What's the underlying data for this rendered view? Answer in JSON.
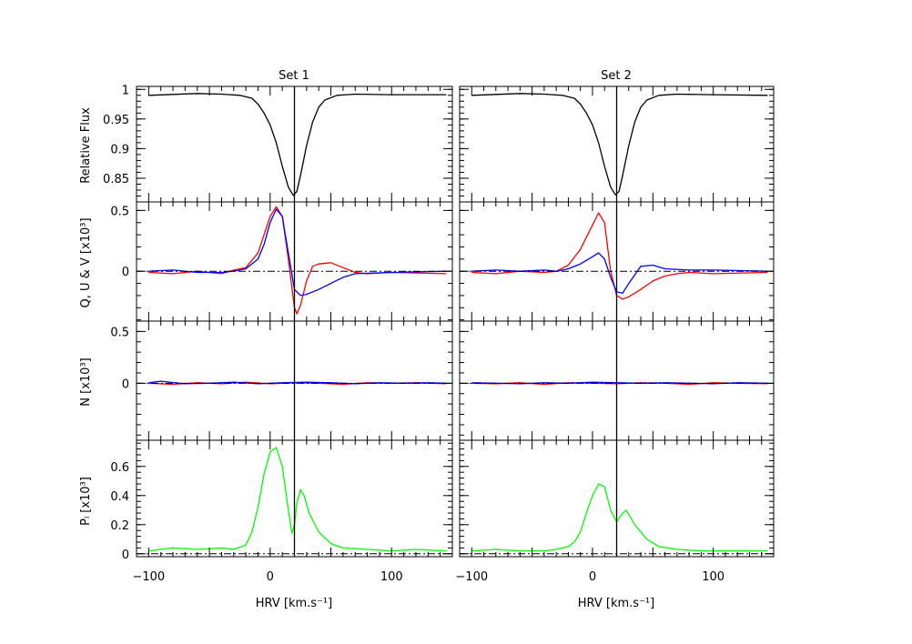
{
  "figure": {
    "columns": [
      {
        "title": "Set 1",
        "xlabel": "HRV [km.s⁻¹]"
      },
      {
        "title": "Set 2",
        "xlabel": "HRV [km.s⁻¹]"
      }
    ],
    "row_labels": [
      "Relative Flux",
      "Q, U & V [x10³]",
      "N [x10³]",
      "Pₗ [x10³]"
    ],
    "colors": {
      "black": "#000000",
      "red": "#ff0000",
      "blue": "#0000ff",
      "green": "#00ff00"
    }
  },
  "chart_data": {
    "type": "line",
    "xlim": [
      -110,
      150
    ],
    "x_ticks": [
      -100,
      0,
      100
    ],
    "reference_velocity": 20,
    "panels": [
      {
        "row": 0,
        "ylim": [
          0.81,
          1.005
        ],
        "ticks": [
          {
            "v": 0.85,
            "label": "0.85"
          },
          {
            "v": 0.9,
            "label": "0.9"
          },
          {
            "v": 0.95,
            "label": "0.95"
          },
          {
            "v": 1.0,
            "label": "1"
          }
        ],
        "zero_line": false
      },
      {
        "row": 1,
        "ylim": [
          -0.41,
          0.57
        ],
        "ticks": [
          {
            "v": 0,
            "label": "0"
          },
          {
            "v": 0.5,
            "label": "0.5"
          }
        ],
        "zero_line": true
      },
      {
        "row": 2,
        "ylim": [
          -0.55,
          0.6
        ],
        "ticks": [
          {
            "v": 0,
            "label": "0"
          },
          {
            "v": 0.5,
            "label": "0.5"
          }
        ],
        "zero_line": true
      },
      {
        "row": 3,
        "ylim": [
          -0.02,
          0.78
        ],
        "ticks": [
          {
            "v": 0,
            "label": "0"
          },
          {
            "v": 0.2,
            "label": "0.2"
          },
          {
            "v": 0.4,
            "label": "0.4"
          },
          {
            "v": 0.6,
            "label": "0.6"
          }
        ],
        "zero_line": true
      }
    ],
    "series": [
      {
        "col": 0,
        "row": 0,
        "color": "#000000",
        "x": [
          -100,
          -60,
          -40,
          -25,
          -15,
          -10,
          -5,
          0,
          5,
          10,
          15,
          19,
          22,
          25,
          30,
          35,
          40,
          45,
          55,
          70,
          100,
          145
        ],
        "y": [
          0.99,
          0.993,
          0.992,
          0.99,
          0.985,
          0.975,
          0.96,
          0.94,
          0.91,
          0.87,
          0.835,
          0.821,
          0.828,
          0.855,
          0.905,
          0.945,
          0.97,
          0.982,
          0.99,
          0.992,
          0.991,
          0.991
        ]
      },
      {
        "col": 0,
        "row": 1,
        "color": "#ff0000",
        "x": [
          -100,
          -80,
          -60,
          -40,
          -30,
          -20,
          -10,
          -5,
          0,
          5,
          10,
          15,
          20,
          22,
          25,
          30,
          35,
          40,
          50,
          60,
          70,
          80,
          100,
          145
        ],
        "y": [
          -0.01,
          -0.02,
          0.0,
          -0.02,
          0.01,
          0.03,
          0.15,
          0.3,
          0.45,
          0.53,
          0.45,
          0.1,
          -0.3,
          -0.35,
          -0.28,
          -0.08,
          0.04,
          0.06,
          0.07,
          0.03,
          -0.01,
          -0.02,
          -0.01,
          -0.02
        ]
      },
      {
        "col": 0,
        "row": 1,
        "color": "#0000ff",
        "x": [
          -100,
          -80,
          -60,
          -40,
          -30,
          -20,
          -10,
          -5,
          0,
          5,
          10,
          15,
          20,
          25,
          30,
          40,
          50,
          60,
          70,
          100,
          145
        ],
        "y": [
          0.0,
          0.01,
          -0.01,
          -0.01,
          0.0,
          0.02,
          0.1,
          0.22,
          0.4,
          0.51,
          0.45,
          0.15,
          -0.15,
          -0.2,
          -0.19,
          -0.15,
          -0.1,
          -0.05,
          -0.02,
          -0.01,
          0.0
        ]
      },
      {
        "col": 0,
        "row": 2,
        "color": "#ff0000",
        "x": [
          -100,
          -80,
          -60,
          -40,
          -20,
          0,
          20,
          40,
          60,
          80,
          100,
          120,
          145
        ],
        "y": [
          0.0,
          -0.01,
          0.005,
          -0.005,
          0.01,
          -0.005,
          0.005,
          0.0,
          -0.01,
          0.005,
          0.0,
          0.005,
          -0.005
        ]
      },
      {
        "col": 0,
        "row": 2,
        "color": "#0000ff",
        "x": [
          -100,
          -90,
          -70,
          -50,
          -30,
          -10,
          10,
          30,
          50,
          70,
          90,
          110,
          130,
          145
        ],
        "y": [
          0.005,
          0.02,
          -0.005,
          0.0,
          0.01,
          -0.005,
          0.005,
          0.01,
          0.005,
          -0.005,
          0.005,
          0.0,
          0.005,
          0.0
        ]
      },
      {
        "col": 0,
        "row": 3,
        "color": "#00ff00",
        "x": [
          -100,
          -80,
          -60,
          -40,
          -30,
          -20,
          -15,
          -10,
          -5,
          0,
          5,
          10,
          15,
          18,
          20,
          22,
          25,
          28,
          32,
          40,
          50,
          60,
          80,
          100,
          120,
          145
        ],
        "y": [
          0.02,
          0.04,
          0.03,
          0.04,
          0.03,
          0.06,
          0.15,
          0.32,
          0.55,
          0.7,
          0.73,
          0.6,
          0.3,
          0.14,
          0.2,
          0.35,
          0.44,
          0.4,
          0.28,
          0.15,
          0.07,
          0.04,
          0.03,
          0.02,
          0.03,
          0.02
        ]
      },
      {
        "col": 1,
        "row": 0,
        "color": "#000000",
        "x": [
          -100,
          -60,
          -40,
          -25,
          -15,
          -10,
          -5,
          0,
          5,
          10,
          15,
          19,
          22,
          25,
          30,
          35,
          40,
          45,
          55,
          70,
          100,
          145
        ],
        "y": [
          0.99,
          0.993,
          0.992,
          0.99,
          0.985,
          0.975,
          0.96,
          0.94,
          0.91,
          0.87,
          0.835,
          0.822,
          0.828,
          0.855,
          0.905,
          0.945,
          0.97,
          0.982,
          0.99,
          0.992,
          0.991,
          0.99
        ]
      },
      {
        "col": 1,
        "row": 1,
        "color": "#ff0000",
        "x": [
          -100,
          -80,
          -60,
          -40,
          -30,
          -20,
          -10,
          0,
          5,
          10,
          15,
          20,
          25,
          30,
          40,
          50,
          60,
          70,
          80,
          100,
          145
        ],
        "y": [
          -0.01,
          -0.02,
          0.0,
          -0.01,
          0.0,
          0.05,
          0.18,
          0.38,
          0.48,
          0.4,
          0.0,
          -0.2,
          -0.23,
          -0.21,
          -0.15,
          -0.08,
          -0.04,
          -0.02,
          -0.01,
          -0.02,
          -0.01
        ]
      },
      {
        "col": 1,
        "row": 1,
        "color": "#0000ff",
        "x": [
          -100,
          -80,
          -60,
          -40,
          -30,
          -20,
          -10,
          0,
          5,
          10,
          15,
          20,
          25,
          30,
          40,
          50,
          60,
          80,
          100,
          145
        ],
        "y": [
          0.0,
          0.01,
          0.0,
          0.01,
          0.0,
          0.02,
          0.06,
          0.12,
          0.15,
          0.1,
          -0.05,
          -0.17,
          -0.18,
          -0.1,
          0.04,
          0.05,
          0.02,
          0.01,
          0.01,
          0.0
        ]
      },
      {
        "col": 1,
        "row": 2,
        "color": "#ff0000",
        "x": [
          -100,
          -80,
          -60,
          -40,
          -20,
          0,
          20,
          40,
          60,
          80,
          100,
          120,
          145
        ],
        "y": [
          0.0,
          -0.005,
          0.005,
          -0.01,
          0.005,
          0.0,
          -0.005,
          0.005,
          0.0,
          -0.01,
          0.005,
          0.0,
          -0.005
        ]
      },
      {
        "col": 1,
        "row": 2,
        "color": "#0000ff",
        "x": [
          -100,
          -80,
          -60,
          -40,
          -20,
          0,
          20,
          40,
          60,
          80,
          100,
          120,
          145
        ],
        "y": [
          0.005,
          0.0,
          -0.005,
          0.005,
          0.0,
          0.01,
          0.005,
          0.0,
          0.005,
          0.0,
          -0.005,
          0.005,
          0.0
        ]
      },
      {
        "col": 1,
        "row": 3,
        "color": "#00ff00",
        "x": [
          -100,
          -80,
          -60,
          -40,
          -30,
          -20,
          -15,
          -10,
          -5,
          0,
          5,
          10,
          15,
          20,
          25,
          28,
          35,
          45,
          55,
          70,
          90,
          110,
          145
        ],
        "y": [
          0.02,
          0.03,
          0.02,
          0.02,
          0.03,
          0.05,
          0.08,
          0.15,
          0.28,
          0.4,
          0.48,
          0.46,
          0.3,
          0.22,
          0.28,
          0.3,
          0.2,
          0.1,
          0.05,
          0.03,
          0.02,
          0.02,
          0.02
        ]
      }
    ]
  }
}
